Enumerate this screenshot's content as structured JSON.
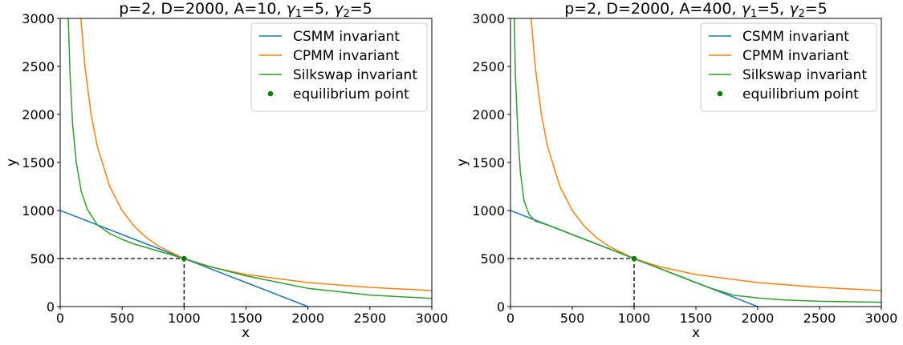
{
  "chart_data": [
    {
      "type": "line",
      "title": "p=2, D=2000, A=10, γ1=5, γ2=5",
      "title_parts": {
        "prefix": "p=2, D=2000, A=10, ",
        "g1_base": "γ",
        "g1_sub": "1",
        "g1_val": "=5, ",
        "g2_base": "γ",
        "g2_sub": "2",
        "g2_val": "=5"
      },
      "xlabel": "x",
      "ylabel": "y",
      "xlim": [
        0,
        3000
      ],
      "ylim": [
        0,
        3000
      ],
      "xticks": [
        "0",
        "500",
        "1000",
        "1500",
        "2000",
        "2500",
        "3000"
      ],
      "yticks": [
        "0",
        "500",
        "1000",
        "1500",
        "2000",
        "2500",
        "3000"
      ],
      "grid": false,
      "legend_position": "top-right",
      "params": {
        "p": 2,
        "D": 2000,
        "A": 10,
        "gamma1": 5,
        "gamma2": 5
      },
      "series": [
        {
          "name": "CSMM invariant",
          "color": "#1f77b4",
          "kind": "line",
          "x": [
            0,
            500,
            1000,
            1500,
            2000
          ],
          "y": [
            1000,
            750,
            500,
            250,
            0
          ]
        },
        {
          "name": "CPMM invariant",
          "color": "#ff7f0e",
          "kind": "line",
          "x": [
            167,
            200,
            250,
            300,
            400,
            500,
            600,
            700,
            800,
            1000,
            1200,
            1500,
            2000,
            2500,
            3000
          ],
          "y": [
            3000,
            2500,
            2000,
            1667,
            1250,
            1000,
            833,
            714,
            625,
            500,
            417,
            333,
            250,
            200,
            167
          ]
        },
        {
          "name": "Silkswap invariant",
          "color": "#2ca02c",
          "kind": "line",
          "x": [
            65,
            80,
            100,
            130,
            170,
            220,
            300,
            400,
            500,
            600,
            800,
            1000,
            1200,
            1500,
            2000,
            2500,
            3000
          ],
          "y": [
            3000,
            2400,
            1900,
            1500,
            1200,
            1010,
            850,
            760,
            700,
            650,
            575,
            500,
            420,
            320,
            190,
            120,
            85
          ]
        },
        {
          "name": "equilibrium point",
          "color": "#008000",
          "kind": "point",
          "x": [
            1000
          ],
          "y": [
            500
          ]
        }
      ],
      "reference_lines": [
        {
          "from": [
            0,
            500
          ],
          "to": [
            1000,
            500
          ],
          "style": "dashed",
          "color": "#000000"
        },
        {
          "from": [
            1000,
            0
          ],
          "to": [
            1000,
            500
          ],
          "style": "dashed",
          "color": "#000000"
        }
      ]
    },
    {
      "type": "line",
      "title": "p=2, D=2000, A=400, γ1=5, γ2=5",
      "title_parts": {
        "prefix": "p=2, D=2000, A=400, ",
        "g1_base": "γ",
        "g1_sub": "1",
        "g1_val": "=5, ",
        "g2_base": "γ",
        "g2_sub": "2",
        "g2_val": "=5"
      },
      "xlabel": "x",
      "ylabel": "y",
      "xlim": [
        0,
        3000
      ],
      "ylim": [
        0,
        3000
      ],
      "xticks": [
        "0",
        "500",
        "1000",
        "1500",
        "2000",
        "2500",
        "3000"
      ],
      "yticks": [
        "0",
        "500",
        "1000",
        "1500",
        "2000",
        "2500",
        "3000"
      ],
      "grid": false,
      "legend_position": "top-right",
      "params": {
        "p": 2,
        "D": 2000,
        "A": 400,
        "gamma1": 5,
        "gamma2": 5
      },
      "series": [
        {
          "name": "CSMM invariant",
          "color": "#1f77b4",
          "kind": "line",
          "x": [
            0,
            500,
            1000,
            1500,
            2000
          ],
          "y": [
            1000,
            750,
            500,
            250,
            0
          ]
        },
        {
          "name": "CPMM invariant",
          "color": "#ff7f0e",
          "kind": "line",
          "x": [
            167,
            200,
            250,
            300,
            400,
            500,
            600,
            700,
            800,
            1000,
            1200,
            1500,
            2000,
            2500,
            3000
          ],
          "y": [
            3000,
            2500,
            2000,
            1667,
            1250,
            1000,
            833,
            714,
            625,
            500,
            417,
            333,
            250,
            200,
            167
          ]
        },
        {
          "name": "Silkswap invariant",
          "color": "#2ca02c",
          "kind": "line",
          "x": [
            30,
            40,
            60,
            80,
            110,
            150,
            200,
            250,
            300,
            500,
            700,
            1000,
            1300,
            1600,
            1800,
            2000,
            2200,
            2500,
            3000
          ],
          "y": [
            3000,
            2400,
            1800,
            1400,
            1100,
            960,
            890,
            870,
            850,
            750,
            650,
            500,
            350,
            200,
            120,
            90,
            70,
            55,
            45
          ]
        },
        {
          "name": "equilibrium point",
          "color": "#008000",
          "kind": "point",
          "x": [
            1000
          ],
          "y": [
            500
          ]
        }
      ],
      "reference_lines": [
        {
          "from": [
            0,
            500
          ],
          "to": [
            1000,
            500
          ],
          "style": "dashed",
          "color": "#000000"
        },
        {
          "from": [
            1000,
            0
          ],
          "to": [
            1000,
            500
          ],
          "style": "dashed",
          "color": "#000000"
        }
      ]
    }
  ]
}
